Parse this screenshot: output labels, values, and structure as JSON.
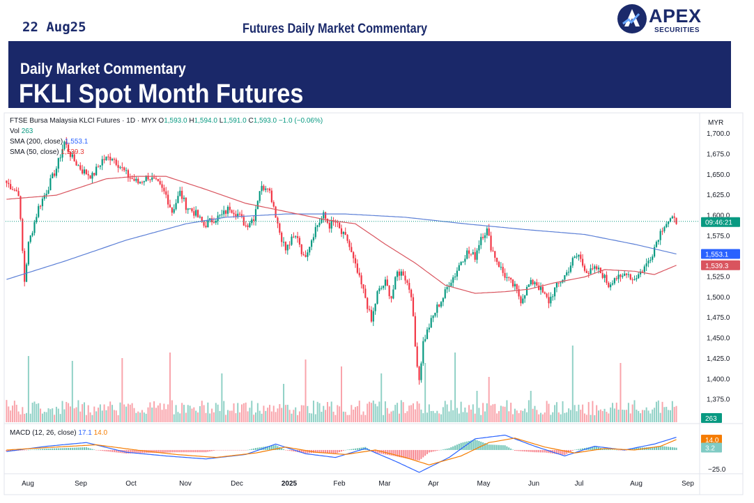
{
  "header": {
    "date": "22 Aug25",
    "title": "Futures Daily Market Commentary",
    "logo_text": "APEX",
    "logo_sub": "SECURITIES"
  },
  "banner": {
    "subtitle": "Daily Market Commentary",
    "title": "FKLI Spot Month Futures"
  },
  "chart_legend": {
    "symbol": "FTSE Bursa Malaysia KLCI Futures · 1D · MYX",
    "ohlc_o_label": "O",
    "ohlc_o": "1,593.0",
    "ohlc_h_label": "H",
    "ohlc_h": "1,594.0",
    "ohlc_l_label": "L",
    "ohlc_l": "1,591.0",
    "ohlc_c_label": "C",
    "ohlc_c": "1,593.0",
    "change": "−1.0 (−0.06%)",
    "vol_label": "Vol",
    "vol_value": "263",
    "sma200_label": "SMA (200, close)",
    "sma200_value": "1,553.1",
    "sma50_label": "SMA (50, close)",
    "sma50_value": "1,539.3",
    "macd_label": "MACD (12, 26, close)",
    "macd_value": "17.1",
    "signal_value": "14.0"
  },
  "colors": {
    "up": "#089981",
    "down": "#f23645",
    "sma200": "#5b7fd6",
    "sma50": "#d9545e",
    "macd": "#2962ff",
    "signal": "#f57c00",
    "banner": "#1a2869",
    "header_text": "#1b2a6b"
  },
  "chart_data": {
    "type": "candlestick",
    "currency": "MYR",
    "x_labels": [
      "Aug",
      "Sep",
      "Oct",
      "Nov",
      "Dec",
      "2025",
      "Feb",
      "Mar",
      "Apr",
      "May",
      "Jun",
      "Jul",
      "Aug",
      "Sep"
    ],
    "price_ticks": [
      "1,700.0",
      "1,675.0",
      "1,650.0",
      "1,625.0",
      "1,600.0",
      "1,575.0",
      "1,550.0",
      "1,525.0",
      "1,500.0",
      "1,475.0",
      "1,450.0",
      "1,425.0",
      "1,400.0",
      "1,375.0"
    ],
    "price_tick_values": [
      1700,
      1675,
      1650,
      1625,
      1600,
      1575,
      1550,
      1525,
      1500,
      1475,
      1450,
      1425,
      1400,
      1375
    ],
    "ylim": [
      1350,
      1712
    ],
    "macd_ticks": [
      "−25.0"
    ],
    "badges": {
      "time": "09:46:21",
      "sma200": "1,553.1",
      "sma50": "1,539.3",
      "volume": "263",
      "signal": "14.0",
      "histogram": "3.2"
    },
    "close_path": [
      [
        0,
        1640
      ],
      [
        6,
        1628
      ],
      [
        9,
        1520
      ],
      [
        11,
        1565
      ],
      [
        16,
        1610
      ],
      [
        20,
        1630
      ],
      [
        25,
        1658
      ],
      [
        29,
        1690
      ],
      [
        33,
        1670
      ],
      [
        38,
        1655
      ],
      [
        43,
        1648
      ],
      [
        48,
        1668
      ],
      [
        53,
        1672
      ],
      [
        57,
        1660
      ],
      [
        61,
        1648
      ],
      [
        66,
        1640
      ],
      [
        71,
        1648
      ],
      [
        76,
        1638
      ],
      [
        80,
        1625
      ],
      [
        83,
        1605
      ],
      [
        87,
        1628
      ],
      [
        90,
        1612
      ],
      [
        95,
        1602
      ],
      [
        99,
        1588
      ],
      [
        104,
        1596
      ],
      [
        108,
        1600
      ],
      [
        112,
        1610
      ],
      [
        116,
        1602
      ],
      [
        120,
        1588
      ],
      [
        124,
        1598
      ],
      [
        127,
        1632
      ],
      [
        131,
        1638
      ],
      [
        134,
        1612
      ],
      [
        137,
        1580
      ],
      [
        140,
        1558
      ],
      [
        143,
        1570
      ],
      [
        146,
        1575
      ],
      [
        149,
        1548
      ],
      [
        152,
        1565
      ],
      [
        155,
        1585
      ],
      [
        159,
        1600
      ],
      [
        162,
        1588
      ],
      [
        165,
        1592
      ],
      [
        168,
        1578
      ],
      [
        171,
        1570
      ],
      [
        174,
        1545
      ],
      [
        177,
        1522
      ],
      [
        180,
        1500
      ],
      [
        183,
        1470
      ],
      [
        186,
        1505
      ],
      [
        190,
        1518
      ],
      [
        193,
        1500
      ],
      [
        196,
        1530
      ],
      [
        199,
        1530
      ],
      [
        203,
        1505
      ],
      [
        205,
        1440
      ],
      [
        207,
        1400
      ],
      [
        209,
        1445
      ],
      [
        212,
        1465
      ],
      [
        216,
        1488
      ],
      [
        219,
        1500
      ],
      [
        222,
        1518
      ],
      [
        225,
        1528
      ],
      [
        228,
        1545
      ],
      [
        231,
        1555
      ],
      [
        235,
        1550
      ],
      [
        238,
        1575
      ],
      [
        241,
        1582
      ],
      [
        243,
        1562
      ],
      [
        246,
        1545
      ],
      [
        249,
        1530
      ],
      [
        252,
        1520
      ],
      [
        255,
        1512
      ],
      [
        258,
        1497
      ],
      [
        262,
        1515
      ],
      [
        265,
        1520
      ],
      [
        269,
        1505
      ],
      [
        272,
        1495
      ],
      [
        275,
        1510
      ],
      [
        278,
        1520
      ],
      [
        281,
        1530
      ],
      [
        284,
        1545
      ],
      [
        287,
        1552
      ],
      [
        289,
        1540
      ],
      [
        292,
        1530
      ],
      [
        296,
        1535
      ],
      [
        299,
        1528
      ],
      [
        302,
        1515
      ],
      [
        305,
        1525
      ],
      [
        308,
        1522
      ],
      [
        311,
        1532
      ],
      [
        314,
        1522
      ],
      [
        317,
        1528
      ],
      [
        321,
        1540
      ],
      [
        324,
        1555
      ],
      [
        327,
        1575
      ],
      [
        330,
        1590
      ],
      [
        333,
        1595
      ],
      [
        336,
        1593
      ]
    ],
    "sma200": [
      [
        0,
        1522
      ],
      [
        30,
        1545
      ],
      [
        60,
        1570
      ],
      [
        90,
        1590
      ],
      [
        110,
        1598
      ],
      [
        140,
        1602
      ],
      [
        170,
        1602
      ],
      [
        200,
        1598
      ],
      [
        230,
        1590
      ],
      [
        260,
        1583
      ],
      [
        290,
        1577
      ],
      [
        315,
        1565
      ],
      [
        336,
        1553.1
      ]
    ],
    "sma50": [
      [
        0,
        1620
      ],
      [
        25,
        1625
      ],
      [
        50,
        1645
      ],
      [
        65,
        1648
      ],
      [
        80,
        1648
      ],
      [
        100,
        1632
      ],
      [
        120,
        1615
      ],
      [
        140,
        1605
      ],
      [
        160,
        1595
      ],
      [
        175,
        1590
      ],
      [
        190,
        1565
      ],
      [
        205,
        1542
      ],
      [
        220,
        1515
      ],
      [
        235,
        1505
      ],
      [
        250,
        1507
      ],
      [
        262,
        1510
      ],
      [
        275,
        1518
      ],
      [
        290,
        1525
      ],
      [
        300,
        1534
      ],
      [
        315,
        1532
      ],
      [
        325,
        1528
      ],
      [
        336,
        1539.3
      ]
    ],
    "macd_line": [
      [
        0,
        -2
      ],
      [
        20,
        5
      ],
      [
        40,
        10
      ],
      [
        60,
        -3
      ],
      [
        80,
        -8
      ],
      [
        100,
        -12
      ],
      [
        120,
        -6
      ],
      [
        135,
        8
      ],
      [
        150,
        -5
      ],
      [
        165,
        -10
      ],
      [
        180,
        2
      ],
      [
        195,
        -15
      ],
      [
        207,
        -30
      ],
      [
        222,
        -10
      ],
      [
        235,
        15
      ],
      [
        250,
        20
      ],
      [
        265,
        5
      ],
      [
        280,
        -8
      ],
      [
        295,
        5
      ],
      [
        310,
        0
      ],
      [
        325,
        8
      ],
      [
        336,
        17.1
      ]
    ],
    "signal_line": [
      [
        0,
        0
      ],
      [
        25,
        4
      ],
      [
        45,
        7
      ],
      [
        65,
        0
      ],
      [
        85,
        -6
      ],
      [
        105,
        -10
      ],
      [
        125,
        -4
      ],
      [
        140,
        4
      ],
      [
        155,
        -3
      ],
      [
        170,
        -6
      ],
      [
        185,
        0
      ],
      [
        200,
        -10
      ],
      [
        212,
        -20
      ],
      [
        228,
        -8
      ],
      [
        242,
        10
      ],
      [
        255,
        16
      ],
      [
        270,
        4
      ],
      [
        285,
        -4
      ],
      [
        300,
        2
      ],
      [
        315,
        0
      ],
      [
        328,
        5
      ],
      [
        336,
        14.0
      ]
    ],
    "macd_ylim": [
      -30,
      28
    ],
    "volume_spikes": [
      [
        11,
        95
      ],
      [
        33,
        88
      ],
      [
        58,
        92
      ],
      [
        82,
        100
      ],
      [
        108,
        70
      ],
      [
        139,
        55
      ],
      [
        150,
        90
      ],
      [
        168,
        80
      ],
      [
        188,
        70
      ],
      [
        210,
        85
      ],
      [
        225,
        100
      ],
      [
        236,
        45
      ],
      [
        242,
        65
      ],
      [
        263,
        45
      ],
      [
        284,
        110
      ],
      [
        308,
        85
      ]
    ]
  }
}
